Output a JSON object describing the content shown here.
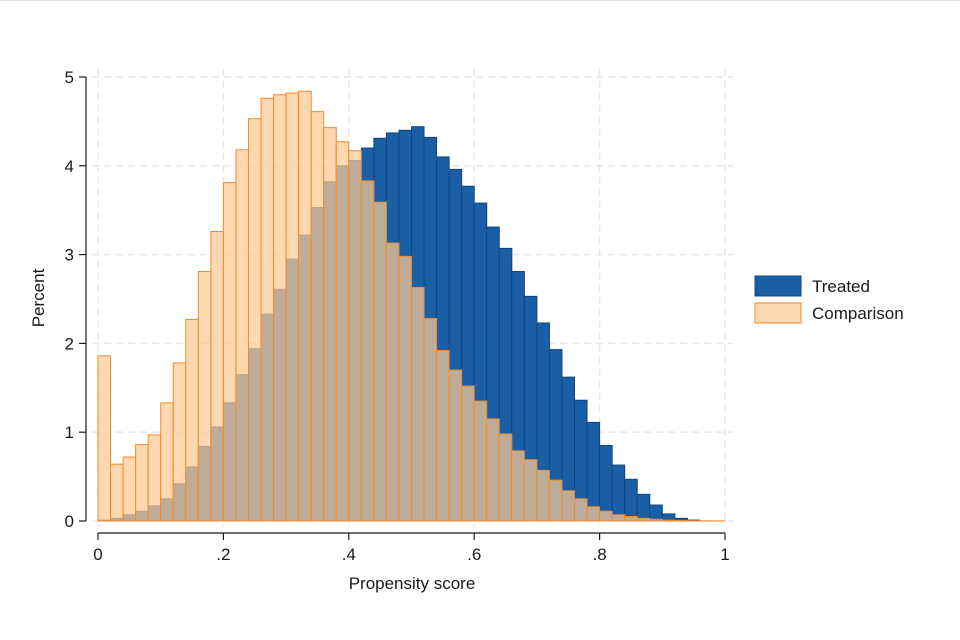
{
  "chart_data": {
    "type": "histogram",
    "title": "",
    "xlabel": "Propensity score",
    "ylabel": "Percent",
    "xlim": [
      0,
      1
    ],
    "ylim": [
      0,
      5
    ],
    "x_ticks": [
      {
        "value": 0,
        "label": "0"
      },
      {
        "value": 0.2,
        "label": ".2"
      },
      {
        "value": 0.4,
        "label": ".4"
      },
      {
        "value": 0.6,
        "label": ".6"
      },
      {
        "value": 0.8,
        "label": ".8"
      },
      {
        "value": 1,
        "label": "1"
      }
    ],
    "y_ticks": [
      {
        "value": 0,
        "label": "0"
      },
      {
        "value": 1,
        "label": "1"
      },
      {
        "value": 2,
        "label": "2"
      },
      {
        "value": 3,
        "label": "3"
      },
      {
        "value": 4,
        "label": "4"
      },
      {
        "value": 5,
        "label": "5"
      }
    ],
    "bin_width": 0.02,
    "bin_start": 0,
    "grid": true,
    "legend_position": "right",
    "series": [
      {
        "name": "Treated",
        "color": "#1a5ea6",
        "edge": "#12467f",
        "values": [
          0.01,
          0.03,
          0.07,
          0.11,
          0.17,
          0.25,
          0.42,
          0.61,
          0.84,
          1.06,
          1.33,
          1.65,
          1.94,
          2.33,
          2.61,
          2.95,
          3.22,
          3.53,
          3.82,
          4.0,
          4.06,
          4.2,
          4.31,
          4.37,
          4.4,
          4.44,
          4.32,
          4.1,
          3.96,
          3.77,
          3.58,
          3.31,
          3.07,
          2.81,
          2.53,
          2.23,
          1.93,
          1.62,
          1.36,
          1.11,
          0.85,
          0.63,
          0.47,
          0.3,
          0.18,
          0.08,
          0.03,
          0.01,
          0.0,
          0.0
        ]
      },
      {
        "name": "Comparison",
        "color": "#fdc993",
        "edge": "#f28c28",
        "values": [
          1.86,
          0.64,
          0.72,
          0.86,
          0.97,
          1.33,
          1.78,
          2.27,
          2.81,
          3.26,
          3.81,
          4.18,
          4.53,
          4.76,
          4.8,
          4.82,
          4.84,
          4.61,
          4.43,
          4.27,
          4.17,
          3.83,
          3.59,
          3.13,
          2.98,
          2.63,
          2.28,
          1.92,
          1.7,
          1.52,
          1.35,
          1.15,
          0.98,
          0.79,
          0.69,
          0.57,
          0.46,
          0.34,
          0.25,
          0.16,
          0.11,
          0.07,
          0.05,
          0.03,
          0.02,
          0.01,
          0.005,
          0.003,
          0.002,
          0.001
        ]
      }
    ]
  }
}
